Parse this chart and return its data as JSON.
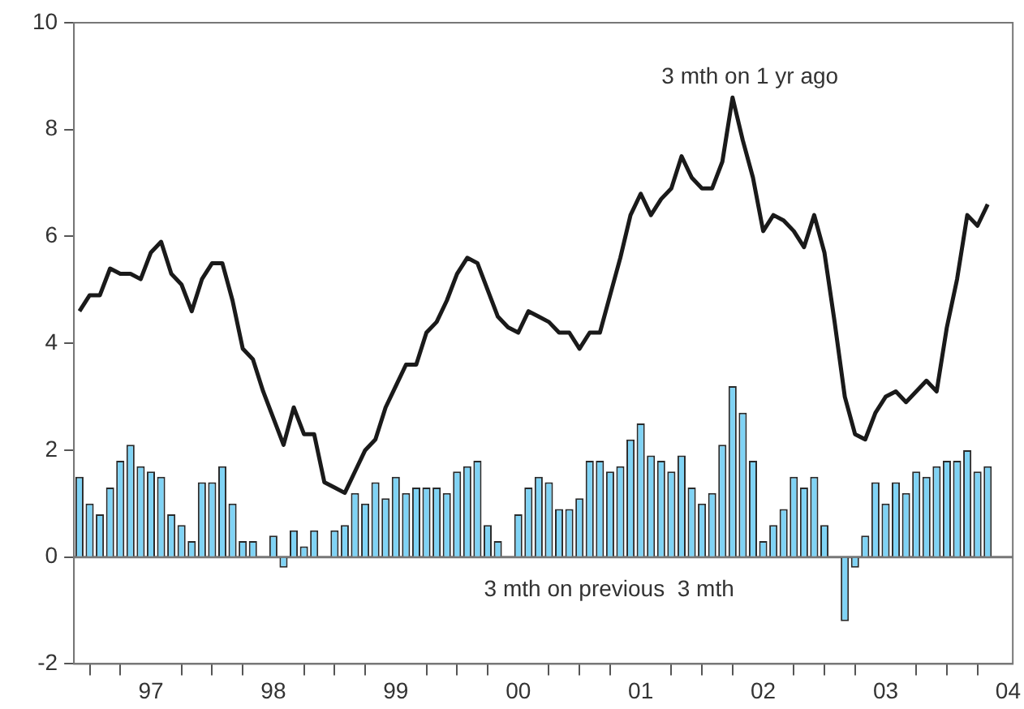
{
  "chart_data": {
    "type": "bar",
    "x": [
      "1996-12",
      "1997-01",
      "1997-02",
      "1997-03",
      "1997-04",
      "1997-05",
      "1997-06",
      "1997-07",
      "1997-08",
      "1997-09",
      "1997-10",
      "1997-11",
      "1997-12",
      "1998-01",
      "1998-02",
      "1998-03",
      "1998-04",
      "1998-05",
      "1998-06",
      "1998-07",
      "1998-08",
      "1998-09",
      "1998-10",
      "1998-11",
      "1998-12",
      "1999-01",
      "1999-02",
      "1999-03",
      "1999-04",
      "1999-05",
      "1999-06",
      "1999-07",
      "1999-08",
      "1999-09",
      "1999-10",
      "1999-11",
      "1999-12",
      "2000-01",
      "2000-02",
      "2000-03",
      "2000-04",
      "2000-05",
      "2000-06",
      "2000-07",
      "2000-08",
      "2000-09",
      "2000-10",
      "2000-11",
      "2000-12",
      "2001-01",
      "2001-02",
      "2001-03",
      "2001-04",
      "2001-05",
      "2001-06",
      "2001-07",
      "2001-08",
      "2001-09",
      "2001-10",
      "2001-11",
      "2001-12",
      "2002-01",
      "2002-02",
      "2002-03",
      "2002-04",
      "2002-05",
      "2002-06",
      "2002-07",
      "2002-08",
      "2002-09",
      "2002-10",
      "2002-11",
      "2002-12",
      "2003-01",
      "2003-02",
      "2003-03",
      "2003-04",
      "2003-05",
      "2003-06",
      "2003-07",
      "2003-08",
      "2003-09",
      "2003-10",
      "2003-11",
      "2003-12",
      "2004-01",
      "2004-02",
      "2004-03",
      "2004-04",
      "2004-05"
    ],
    "series": [
      {
        "name": "3 mth on previous  3 mth",
        "color": "#7fd3f5",
        "values": [
          1.5,
          1.0,
          0.8,
          1.3,
          1.8,
          2.1,
          1.7,
          1.6,
          1.5,
          0.8,
          0.6,
          0.3,
          1.4,
          1.4,
          1.7,
          1.0,
          0.3,
          0.3,
          0.0,
          0.4,
          -0.2,
          0.5,
          0.2,
          0.5,
          null,
          0.5,
          0.6,
          1.2,
          1.0,
          1.4,
          1.1,
          1.5,
          1.2,
          1.3,
          1.3,
          1.3,
          1.2,
          1.6,
          1.7,
          1.8,
          0.6,
          0.3,
          null,
          0.8,
          1.3,
          1.5,
          1.4,
          0.9,
          0.9,
          1.1,
          1.8,
          1.8,
          1.6,
          1.7,
          2.2,
          2.5,
          1.9,
          1.8,
          1.6,
          1.9,
          1.3,
          1.0,
          1.2,
          2.1,
          3.2,
          2.7,
          1.8,
          0.3,
          0.6,
          0.9,
          1.5,
          1.3,
          1.5,
          0.6,
          null,
          -1.2,
          -0.2,
          0.4,
          1.4,
          1.0,
          1.4,
          1.2,
          1.6,
          1.5,
          1.7,
          1.8,
          1.8,
          2.0,
          1.6,
          1.7
        ]
      },
      {
        "name": "3 mth on 1 yr ago",
        "type": "line",
        "color": "#1a1a1a",
        "values": [
          4.6,
          4.9,
          4.9,
          5.4,
          5.3,
          5.3,
          5.2,
          5.7,
          5.9,
          5.3,
          5.1,
          4.6,
          5.2,
          5.5,
          5.5,
          4.8,
          3.9,
          3.7,
          3.1,
          2.6,
          2.1,
          2.8,
          2.3,
          2.3,
          1.4,
          1.3,
          1.2,
          1.6,
          2.0,
          2.2,
          2.8,
          3.2,
          3.6,
          3.6,
          4.2,
          4.4,
          4.8,
          5.3,
          5.6,
          5.5,
          5.0,
          4.5,
          4.3,
          4.2,
          4.6,
          4.5,
          4.4,
          4.2,
          4.2,
          3.9,
          4.2,
          4.2,
          4.9,
          5.6,
          6.4,
          6.8,
          6.4,
          6.7,
          6.9,
          7.5,
          7.1,
          6.9,
          6.9,
          7.4,
          8.6,
          7.8,
          7.1,
          6.1,
          6.4,
          6.3,
          6.1,
          5.8,
          6.4,
          5.7,
          4.4,
          3.0,
          2.3,
          2.2,
          2.7,
          3.0,
          3.1,
          2.9,
          3.1,
          3.3,
          3.1,
          4.3,
          5.2,
          6.4,
          6.2,
          6.6
        ]
      }
    ],
    "xlim": [
      "1996-11-15",
      "2004-07-15"
    ],
    "xticks": [
      {
        "value": "1997-01",
        "label": null
      },
      {
        "value": "1997-04",
        "label": null
      },
      {
        "value": "1997-07",
        "label": "97"
      },
      {
        "value": "1997-10",
        "label": null
      },
      {
        "value": "1998-01",
        "label": null
      },
      {
        "value": "1998-04",
        "label": null
      },
      {
        "value": "1998-07",
        "label": "98"
      },
      {
        "value": "1998-10",
        "label": null
      },
      {
        "value": "1999-01",
        "label": null
      },
      {
        "value": "1999-04",
        "label": null
      },
      {
        "value": "1999-07",
        "label": "99"
      },
      {
        "value": "1999-10",
        "label": null
      },
      {
        "value": "2000-01",
        "label": null
      },
      {
        "value": "2000-04",
        "label": null
      },
      {
        "value": "2000-07",
        "label": "00"
      },
      {
        "value": "2000-10",
        "label": null
      },
      {
        "value": "2001-01",
        "label": null
      },
      {
        "value": "2001-04",
        "label": null
      },
      {
        "value": "2001-07",
        "label": "01"
      },
      {
        "value": "2001-10",
        "label": null
      },
      {
        "value": "2002-01",
        "label": null
      },
      {
        "value": "2002-04",
        "label": null
      },
      {
        "value": "2002-07",
        "label": "02"
      },
      {
        "value": "2002-10",
        "label": null
      },
      {
        "value": "2003-01",
        "label": null
      },
      {
        "value": "2003-04",
        "label": null
      },
      {
        "value": "2003-07",
        "label": "03"
      },
      {
        "value": "2003-10",
        "label": null
      },
      {
        "value": "2004-01",
        "label": null
      },
      {
        "value": "2004-04",
        "label": null
      },
      {
        "value": "2004-07",
        "label": "04"
      }
    ],
    "ylim": [
      -2,
      10
    ],
    "yticks": [
      -2,
      0,
      2,
      4,
      6,
      8,
      10
    ],
    "ref_lines": [
      {
        "axis": "y",
        "value": 0,
        "color": "#777777"
      }
    ],
    "grid": false,
    "legend": false
  }
}
